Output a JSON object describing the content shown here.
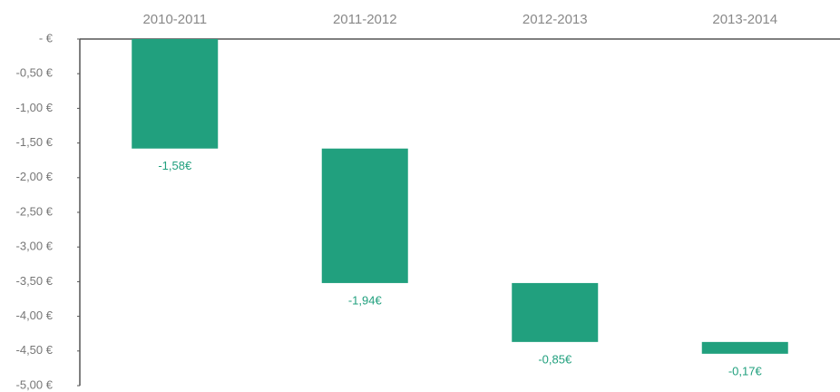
{
  "chart_data": {
    "type": "waterfall",
    "categories": [
      "2010-2011",
      "2011-2012",
      "2012-2013",
      "2013-2014"
    ],
    "values": [
      -1.58,
      -1.94,
      -0.85,
      -0.17
    ],
    "value_labels": [
      "-1,58€",
      "-1,94€",
      "-0,85€",
      "-0,17€"
    ],
    "color": "#21a07e",
    "ylim": [
      -5,
      0
    ],
    "yticks": [
      {
        "value": 0,
        "label": "- €"
      },
      {
        "value": -0.5,
        "label": "-0,50 €"
      },
      {
        "value": -1,
        "label": "-1,00 €"
      },
      {
        "value": -1.5,
        "label": "-1,50 €"
      },
      {
        "value": -2,
        "label": "-2,00 €"
      },
      {
        "value": -2.5,
        "label": "-2,50 €"
      },
      {
        "value": -3,
        "label": "-3,00 €"
      },
      {
        "value": -3.5,
        "label": "-3,50 €"
      },
      {
        "value": -4,
        "label": "-4,00 €"
      },
      {
        "value": -4.5,
        "label": "-4,50 €"
      },
      {
        "value": -5,
        "label": "-5,00 €"
      }
    ],
    "grid": false
  }
}
